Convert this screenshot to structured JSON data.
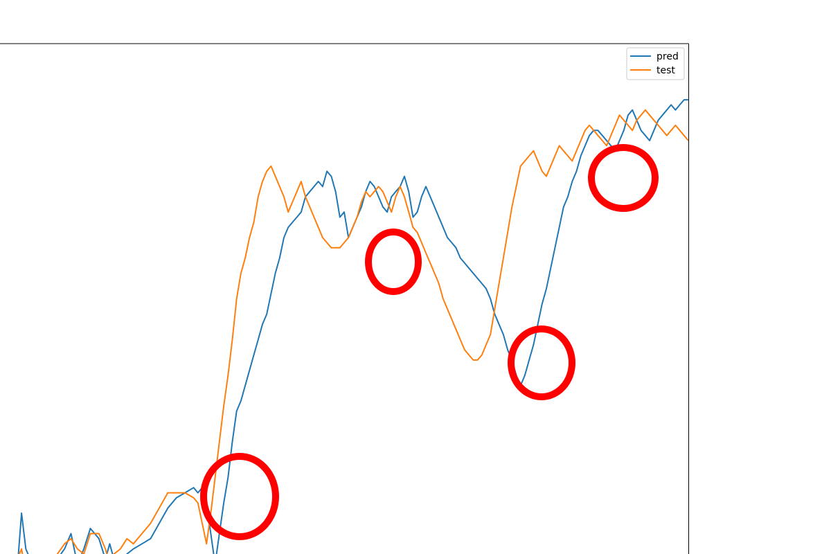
{
  "chart_data": {
    "type": "line",
    "title": "",
    "xlabel": "",
    "ylabel": "",
    "legend_position": "top-right",
    "grid": false,
    "xlim": [
      0,
      320
    ],
    "ylim": [
      0,
      100
    ],
    "series": [
      {
        "name": "pred",
        "color": "#1f77b4",
        "x": [
          0,
          8,
          10,
          12,
          15,
          20,
          25,
          30,
          33,
          36,
          39,
          42,
          46,
          49,
          51,
          53,
          56,
          59,
          62,
          66,
          70,
          74,
          78,
          82,
          86,
          90,
          92,
          94,
          96,
          98,
          100,
          102,
          104,
          106,
          108,
          110,
          112,
          114,
          116,
          118,
          120,
          122,
          124,
          126,
          128,
          130,
          132,
          134,
          136,
          138,
          140,
          142,
          144,
          146,
          148,
          150,
          152,
          154,
          156,
          158,
          160,
          162,
          164,
          166,
          168,
          170,
          172,
          174,
          176,
          178,
          180,
          182,
          184,
          186,
          188,
          190,
          192,
          194,
          196,
          198,
          200,
          202,
          204,
          206,
          208,
          210,
          212,
          214,
          216,
          218,
          220,
          222,
          224,
          226,
          228,
          230,
          232,
          234,
          236,
          238,
          240,
          242,
          244,
          246,
          248,
          250,
          252,
          254,
          256,
          258,
          260,
          262,
          264,
          266,
          268,
          270,
          272,
          274,
          276,
          278,
          280,
          282,
          284,
          286,
          288,
          290,
          292,
          294,
          296,
          298,
          300,
          302,
          304,
          306,
          308,
          310,
          312,
          314,
          316,
          318,
          320
        ],
        "values": [
          -2,
          -3,
          8,
          1,
          -2,
          -3,
          -2,
          1,
          4,
          -2,
          1,
          5,
          3,
          -1,
          2,
          -1,
          -2,
          0,
          1,
          2,
          3,
          6,
          9,
          11,
          12,
          13,
          12,
          13,
          10,
          4,
          -2,
          4,
          10,
          15,
          22,
          28,
          30,
          33,
          36,
          39,
          42,
          45,
          47,
          51,
          55,
          58,
          62,
          64,
          65,
          66,
          67,
          70,
          71,
          72,
          73,
          72,
          75,
          74,
          71,
          66,
          67,
          62,
          64,
          66,
          68,
          71,
          73,
          72,
          70,
          68,
          67,
          70,
          71,
          72,
          74,
          71,
          66,
          67,
          70,
          72,
          70,
          68,
          66,
          64,
          62,
          61,
          60,
          58,
          57,
          56,
          55,
          54,
          53,
          52,
          50,
          47,
          45,
          43,
          40,
          38,
          35,
          33,
          35,
          38,
          41,
          45,
          49,
          52,
          56,
          60,
          64,
          68,
          70,
          73,
          75,
          78,
          80,
          82,
          83,
          83,
          82,
          81,
          80,
          79,
          81,
          83,
          86,
          87,
          85,
          83,
          82,
          81,
          83,
          85,
          86,
          87,
          88,
          87,
          88,
          89,
          89
        ],
        "__note": ""
      },
      {
        "name": "test",
        "color": "#ff7f0e",
        "x": [
          0,
          8,
          10,
          12,
          15,
          20,
          25,
          30,
          33,
          36,
          39,
          42,
          46,
          49,
          51,
          53,
          56,
          59,
          62,
          66,
          70,
          74,
          78,
          82,
          86,
          90,
          92,
          94,
          96,
          98,
          100,
          102,
          104,
          106,
          108,
          110,
          112,
          114,
          116,
          118,
          120,
          122,
          124,
          126,
          128,
          130,
          132,
          134,
          136,
          138,
          140,
          142,
          144,
          146,
          148,
          150,
          152,
          154,
          156,
          158,
          160,
          162,
          164,
          166,
          168,
          170,
          172,
          174,
          176,
          178,
          180,
          182,
          184,
          186,
          188,
          190,
          192,
          194,
          196,
          198,
          200,
          202,
          204,
          206,
          208,
          210,
          212,
          214,
          216,
          218,
          220,
          222,
          224,
          226,
          228,
          230,
          232,
          234,
          236,
          238,
          240,
          242,
          244,
          246,
          248,
          250,
          252,
          254,
          256,
          258,
          260,
          262,
          264,
          266,
          268,
          270,
          272,
          274,
          276,
          278,
          280,
          282,
          284,
          286,
          288,
          290,
          292,
          294,
          296,
          298,
          300,
          302,
          304,
          306,
          308,
          310,
          312,
          314,
          316,
          318,
          320
        ],
        "values": [
          -3,
          -1,
          1,
          -4,
          -3,
          -2,
          -1,
          2,
          3,
          1,
          0,
          4,
          4,
          1,
          -2,
          0,
          1,
          3,
          2,
          4,
          6,
          9,
          12,
          12,
          12,
          11,
          10,
          6,
          2,
          8,
          15,
          22,
          29,
          35,
          42,
          50,
          55,
          58,
          62,
          65,
          70,
          73,
          75,
          76,
          74,
          72,
          70,
          67,
          69,
          71,
          73,
          70,
          68,
          66,
          64,
          62,
          61,
          60,
          60,
          60,
          61,
          62,
          64,
          66,
          69,
          71,
          70,
          71,
          72,
          71,
          69,
          67,
          70,
          72,
          70,
          67,
          64,
          63,
          61,
          59,
          57,
          55,
          53,
          50,
          48,
          46,
          44,
          42,
          40,
          39,
          38,
          38,
          39,
          41,
          43,
          48,
          53,
          58,
          63,
          68,
          72,
          76,
          77,
          78,
          79,
          77,
          75,
          74,
          76,
          78,
          80,
          79,
          78,
          77,
          79,
          81,
          83,
          84,
          83,
          82,
          81,
          80,
          82,
          84,
          86,
          85,
          84,
          83,
          85,
          86,
          87,
          86,
          85,
          84,
          83,
          82,
          83,
          84,
          83,
          82,
          81
        ],
        "__note": ""
      }
    ]
  },
  "annotations": {
    "circle_color": "#ff0000"
  }
}
